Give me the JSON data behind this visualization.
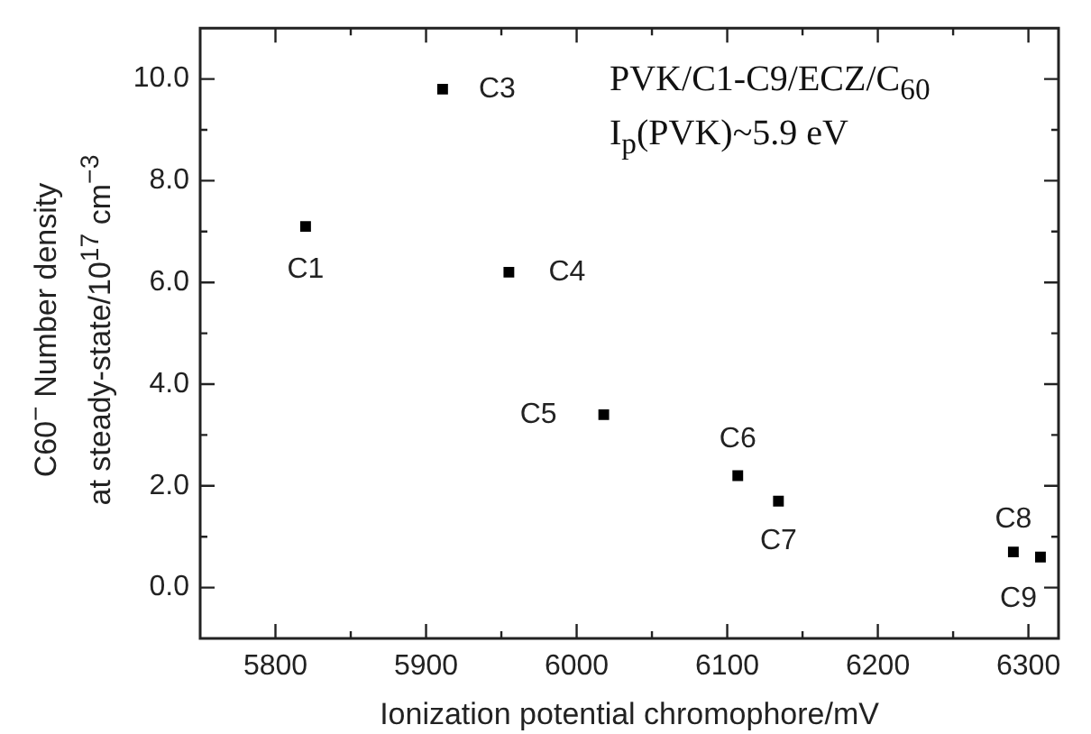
{
  "chart_data": {
    "type": "scatter",
    "xlabel": "Ionization potential chromophore/mV",
    "ylabel": "C60$^{−}$ Number density\nat steady-state/10$^{17}$ cm$^{−3}$",
    "x": [
      5820,
      5911,
      5955,
      6018,
      6107,
      6134,
      6290,
      6308
    ],
    "series": [
      {
        "color": "#000000",
        "values": [
          7.1,
          9.8,
          6.2,
          3.4,
          2.2,
          1.7,
          0.7,
          0.6
        ]
      }
    ],
    "marker": "square",
    "grid": false,
    "legend": false,
    "xlim": [
      5750,
      6320
    ],
    "xticks": [
      5800,
      {
        "value": 5850,
        "label": null
      },
      5900,
      {
        "value": 5950,
        "label": null
      },
      6000,
      {
        "value": 6050,
        "label": null
      },
      6100,
      {
        "value": 6150,
        "label": null
      },
      6200,
      {
        "value": 6250,
        "label": null
      },
      6300
    ],
    "ylim": [
      -1,
      11
    ],
    "yticks": [
      {
        "value": 0,
        "label": "0.0"
      },
      {
        "value": 1,
        "label": null
      },
      {
        "value": 2,
        "label": "2.0"
      },
      {
        "value": 3,
        "label": null
      },
      {
        "value": 4,
        "label": "4.0"
      },
      {
        "value": 5,
        "label": null
      },
      {
        "value": 6,
        "label": "6.0"
      },
      {
        "value": 7,
        "label": null
      },
      {
        "value": 8,
        "label": "8.0"
      },
      {
        "value": 9,
        "label": null
      },
      {
        "value": 10,
        "label": "10.0"
      }
    ],
    "annotations": [
      {
        "text": "C1",
        "x": 5820,
        "y": 7.1
      },
      {
        "text": "C3",
        "x": 5911,
        "y": 9.8
      },
      {
        "text": "C4",
        "x": 5955,
        "y": 6.2
      },
      {
        "text": "C5",
        "x": 6018,
        "y": 3.4
      },
      {
        "text": "C6",
        "x": 6107,
        "y": 2.2
      },
      {
        "text": "C7",
        "x": 6134,
        "y": 1.7
      },
      {
        "text": "C8",
        "x": 6290,
        "y": 0.7
      },
      {
        "text": "C9",
        "x": 6308,
        "y": 0.6
      },
      "PVK/C1-C9/ECZ/C$_{60}$",
      "I$_{p}$(PVK)~5.9 eV"
    ]
  }
}
